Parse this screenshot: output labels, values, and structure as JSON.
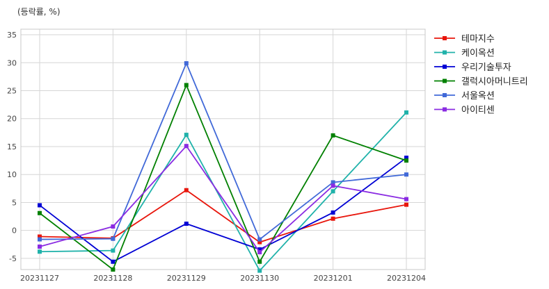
{
  "chart_data": {
    "type": "line",
    "unit_label": "(등락률, %)",
    "x": [
      "20231127",
      "20231128",
      "20231129",
      "20231130",
      "20231201",
      "20231204"
    ],
    "ylim": [
      -7,
      36
    ],
    "yticks": [
      -5,
      0,
      5,
      10,
      15,
      20,
      25,
      30,
      35
    ],
    "grid": true,
    "legend_position": "top-right-outside",
    "series": [
      {
        "name": "테마지수",
        "color": "#e8160c",
        "values": [
          -1.1,
          -1.4,
          7.2,
          -2.1,
          2.1,
          4.6
        ]
      },
      {
        "name": "케이옥션",
        "color": "#20b2aa",
        "values": [
          -3.8,
          -3.6,
          17.1,
          -7.2,
          7.0,
          21.1
        ]
      },
      {
        "name": "우리기술투자",
        "color": "#0000d4",
        "values": [
          4.5,
          -5.6,
          1.2,
          -3.4,
          3.2,
          13.0
        ]
      },
      {
        "name": "갤럭시아머니트리",
        "color": "#008000",
        "values": [
          3.1,
          -7.0,
          26.0,
          -5.6,
          17.0,
          12.5
        ]
      },
      {
        "name": "서울옥션",
        "color": "#4169d8",
        "values": [
          -1.6,
          -1.5,
          29.9,
          -1.6,
          8.6,
          10.0
        ]
      },
      {
        "name": "아이티센",
        "color": "#8a2be2",
        "values": [
          -2.9,
          0.7,
          15.1,
          -3.9,
          8.0,
          5.6
        ]
      }
    ]
  }
}
